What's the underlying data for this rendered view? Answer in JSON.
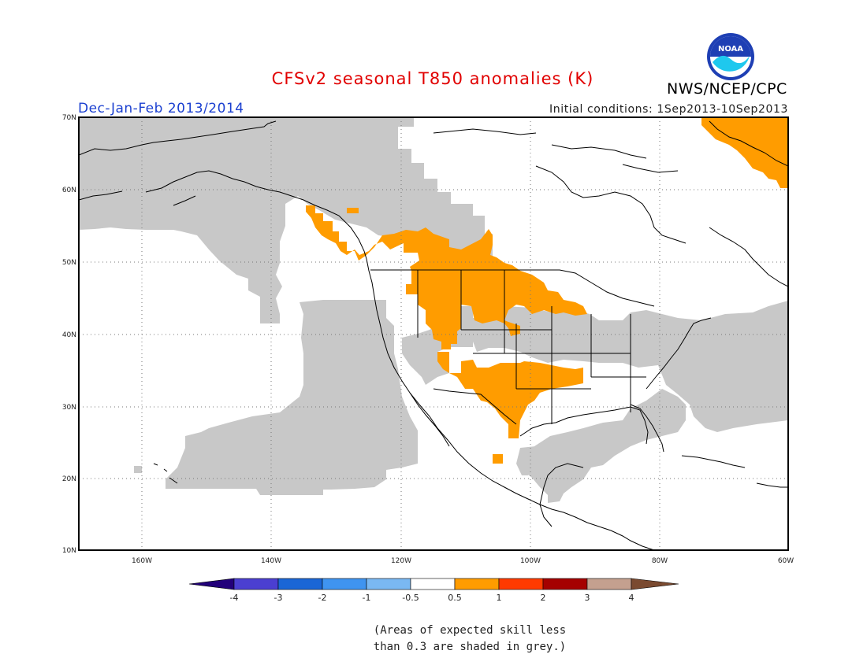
{
  "header": {
    "title": "CFSv2 seasonal T850 anomalies (K)",
    "agency": "NWS/NCEP/CPC",
    "season": "Dec-Jan-Feb 2013/2014",
    "init": "Initial conditions: 1Sep2013-10Sep2013",
    "logo_text": "NOAA"
  },
  "map": {
    "lat_labels": [
      "70N",
      "60N",
      "50N",
      "40N",
      "30N",
      "20N",
      "10N"
    ],
    "lon_labels": [
      "160W",
      "140W",
      "120W",
      "100W",
      "80W",
      "60W"
    ],
    "colors": {
      "low_skill": "#c8c8c8",
      "warm_anomaly": "#ff9c00",
      "coast": "#000000",
      "grid": "#777777"
    }
  },
  "colorbar": {
    "ticks": [
      "-4",
      "-3",
      "-2",
      "-1",
      "-0.5",
      "0.5",
      "1",
      "2",
      "3",
      "4"
    ],
    "colors": [
      "#22007a",
      "#4b3fd1",
      "#1a66d6",
      "#3f94f0",
      "#7ab8f2",
      "#ffffff",
      "#ff9c00",
      "#ff3a00",
      "#a50000",
      "#c4a08f",
      "#7a4a30"
    ]
  },
  "note": {
    "line1": "(Areas of expected skill less",
    "line2": "than 0.3 are shaded in grey.)"
  }
}
